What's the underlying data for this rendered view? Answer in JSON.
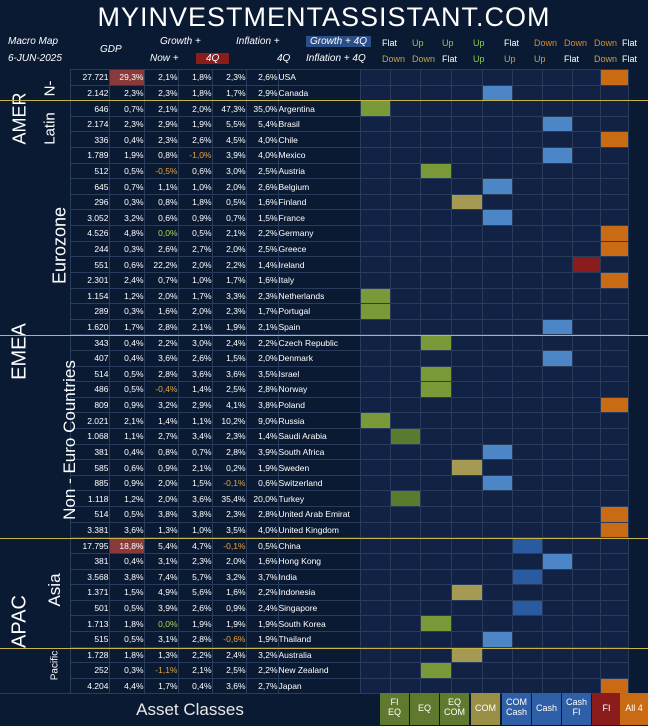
{
  "title": "MYINVESTMENTASSISTANT.COM",
  "header": {
    "map_title": "Macro Map",
    "date": "6-JUN-2025",
    "gdp": "GDP",
    "growth": "Growth +",
    "now": "Now +",
    "q4": "4Q",
    "inflation": "Inflation +",
    "inf_q4": "4Q",
    "gi": "Growth + 4Q",
    "ii": "Inflation + 4Q",
    "cols": [
      {
        "top": "Flat",
        "bot": "Down",
        "tc": "#ffffff",
        "bc": "#c8a24a"
      },
      {
        "top": "Up",
        "bot": "Down",
        "tc": "#8ccf4a",
        "bc": "#c8a24a"
      },
      {
        "top": "Up",
        "bot": "Flat",
        "tc": "#8ccf4a",
        "bc": "#ffffff"
      },
      {
        "top": "Up",
        "bot": "Up",
        "tc": "#8ccf4a",
        "bc": "#8ccf4a"
      },
      {
        "top": "Flat",
        "bot": "Up",
        "tc": "#ffffff",
        "bc": "#c8a24a"
      },
      {
        "top": "Down",
        "bot": "Up",
        "tc": "#d98b2a",
        "bc": "#c8a24a"
      },
      {
        "top": "Down",
        "bot": "Flat",
        "tc": "#d98b2a",
        "bc": "#ffffff"
      },
      {
        "top": "Down",
        "bot": "Down",
        "tc": "#d98b2a",
        "bc": "#c8a24a"
      },
      {
        "top": "Flat",
        "bot": "Flat",
        "tc": "#ffffff",
        "bc": "#ffffff"
      }
    ]
  },
  "regions": {
    "amer": "AMER",
    "n": "N-",
    "latin": "Latin",
    "emea": "EMEA",
    "eurozone": "Eurozone",
    "noneuro": "Non - Euro Countries",
    "apac": "APAC",
    "asia": "Asia",
    "pacific": "Pacific"
  },
  "rows": [
    {
      "gdp": "27.721",
      "pct": "29,3%",
      "gn": "2,1%",
      "g4": "1,8%",
      "in": "2,3%",
      "i4": "2,6%",
      "c": "USA",
      "sig": 8,
      "hl": 1
    },
    {
      "gdp": "2.142",
      "pct": "2,3%",
      "gn": "2,3%",
      "g4": "1,8%",
      "in": "1,7%",
      "i4": "2,9%",
      "c": "Canada",
      "sig": 4
    },
    {
      "gdp": "646",
      "pct": "0,7%",
      "gn": "2,1%",
      "g4": "2,0%",
      "in": "47,3%",
      "i4": "35,0%",
      "c": "Argentina",
      "sig": 0
    },
    {
      "gdp": "2.174",
      "pct": "2,3%",
      "gn": "2,9%",
      "g4": "1,9%",
      "in": "5,5%",
      "i4": "5,4%",
      "c": "Brasil",
      "sig": 6
    },
    {
      "gdp": "336",
      "pct": "0,4%",
      "gn": "2,3%",
      "g4": "2,6%",
      "in": "4,5%",
      "i4": "4,0%",
      "c": "Chile",
      "sig": 8
    },
    {
      "gdp": "1.789",
      "pct": "1,9%",
      "gn": "0,8%",
      "g4": "-1,0%",
      "in": "3,9%",
      "i4": "4,0%",
      "c": "Mexico",
      "sig": 6
    },
    {
      "gdp": "512",
      "pct": "0,5%",
      "gn": "-0,5%",
      "g4": "0,6%",
      "in": "3,0%",
      "i4": "2,5%",
      "c": "Austria",
      "sig": 2
    },
    {
      "gdp": "645",
      "pct": "0,7%",
      "gn": "1,1%",
      "g4": "1,0%",
      "in": "2,0%",
      "i4": "2,6%",
      "c": "Belgium",
      "sig": 4
    },
    {
      "gdp": "296",
      "pct": "0,3%",
      "gn": "0,8%",
      "g4": "1,8%",
      "in": "0,5%",
      "i4": "1,6%",
      "c": "Finland",
      "sig": 3
    },
    {
      "gdp": "3.052",
      "pct": "3,2%",
      "gn": "0,6%",
      "g4": "0,9%",
      "in": "0,7%",
      "i4": "1,5%",
      "c": "France",
      "sig": 4
    },
    {
      "gdp": "4.526",
      "pct": "4,8%",
      "gn": "0,0%",
      "g4": "0,5%",
      "in": "2,1%",
      "i4": "2,2%",
      "c": "Germany",
      "sig": 8
    },
    {
      "gdp": "244",
      "pct": "0,3%",
      "gn": "2,6%",
      "g4": "2,7%",
      "in": "2,0%",
      "i4": "2,5%",
      "c": "Greece",
      "sig": 8
    },
    {
      "gdp": "551",
      "pct": "0,6%",
      "gn": "22,2%",
      "g4": "2,0%",
      "in": "2,2%",
      "i4": "1,4%",
      "c": "Ireland",
      "sig": 7
    },
    {
      "gdp": "2.301",
      "pct": "2,4%",
      "gn": "0,7%",
      "g4": "1,0%",
      "in": "1,7%",
      "i4": "1,6%",
      "c": "Italy",
      "sig": 8
    },
    {
      "gdp": "1.154",
      "pct": "1,2%",
      "gn": "2,0%",
      "g4": "1,7%",
      "in": "3,3%",
      "i4": "2,3%",
      "c": "Netherlands",
      "sig": 0
    },
    {
      "gdp": "289",
      "pct": "0,3%",
      "gn": "1,6%",
      "g4": "2,0%",
      "in": "2,3%",
      "i4": "1,7%",
      "c": "Portugal",
      "sig": 0
    },
    {
      "gdp": "1.620",
      "pct": "1,7%",
      "gn": "2,8%",
      "g4": "2,1%",
      "in": "1,9%",
      "i4": "2,1%",
      "c": "Spain",
      "sig": 6
    },
    {
      "gdp": "343",
      "pct": "0,4%",
      "gn": "2,2%",
      "g4": "3,0%",
      "in": "2,4%",
      "i4": "2,2%",
      "c": "Czech Republic",
      "sig": 2
    },
    {
      "gdp": "407",
      "pct": "0,4%",
      "gn": "3,6%",
      "g4": "2,6%",
      "in": "1,5%",
      "i4": "2,0%",
      "c": "Denmark",
      "sig": 6
    },
    {
      "gdp": "514",
      "pct": "0,5%",
      "gn": "2,8%",
      "g4": "3,6%",
      "in": "3,6%",
      "i4": "3,5%",
      "c": "Israel",
      "sig": 2
    },
    {
      "gdp": "486",
      "pct": "0,5%",
      "gn": "-0,4%",
      "g4": "1,4%",
      "in": "2,5%",
      "i4": "2,8%",
      "c": "Norway",
      "sig": 2
    },
    {
      "gdp": "809",
      "pct": "0,9%",
      "gn": "3,2%",
      "g4": "2,9%",
      "in": "4,1%",
      "i4": "3,8%",
      "c": "Poland",
      "sig": 8
    },
    {
      "gdp": "2.021",
      "pct": "2,1%",
      "gn": "1,4%",
      "g4": "1,1%",
      "in": "10,2%",
      "i4": "9,0%",
      "c": "Russia",
      "sig": 0
    },
    {
      "gdp": "1.068",
      "pct": "1,1%",
      "gn": "2,7%",
      "g4": "3,4%",
      "in": "2,3%",
      "i4": "1,4%",
      "c": "Saudi Arabia",
      "sig": 1
    },
    {
      "gdp": "381",
      "pct": "0,4%",
      "gn": "0,8%",
      "g4": "0,7%",
      "in": "2,8%",
      "i4": "3,9%",
      "c": "South Africa",
      "sig": 4
    },
    {
      "gdp": "585",
      "pct": "0,6%",
      "gn": "0,9%",
      "g4": "2,1%",
      "in": "0,2%",
      "i4": "1,9%",
      "c": "Sweden",
      "sig": 3
    },
    {
      "gdp": "885",
      "pct": "0,9%",
      "gn": "2,0%",
      "g4": "1,5%",
      "in": "-0,1%",
      "i4": "0,6%",
      "c": "Switzerland",
      "sig": 4
    },
    {
      "gdp": "1.118",
      "pct": "1,2%",
      "gn": "2,0%",
      "g4": "3,6%",
      "in": "35,4%",
      "i4": "20,0%",
      "c": "Turkey",
      "sig": 1
    },
    {
      "gdp": "514",
      "pct": "0,5%",
      "gn": "3,8%",
      "g4": "3,8%",
      "in": "2,3%",
      "i4": "2,8%",
      "c": "United Arab Emirat",
      "sig": 8
    },
    {
      "gdp": "3.381",
      "pct": "3,6%",
      "gn": "1,3%",
      "g4": "1,0%",
      "in": "3,5%",
      "i4": "4,0%",
      "c": "United Kingdom",
      "sig": 8
    },
    {
      "gdp": "17.795",
      "pct": "18,8%",
      "gn": "5,4%",
      "g4": "4,7%",
      "in": "-0,1%",
      "i4": "0,5%",
      "c": "China",
      "sig": 5,
      "hl": 1
    },
    {
      "gdp": "381",
      "pct": "0,4%",
      "gn": "3,1%",
      "g4": "2,3%",
      "in": "2,0%",
      "i4": "1,6%",
      "c": "Hong Kong",
      "sig": 6
    },
    {
      "gdp": "3.568",
      "pct": "3,8%",
      "gn": "7,4%",
      "g4": "5,7%",
      "in": "3,2%",
      "i4": "3,7%",
      "c": "India",
      "sig": 5
    },
    {
      "gdp": "1.371",
      "pct": "1,5%",
      "gn": "4,9%",
      "g4": "5,6%",
      "in": "1,6%",
      "i4": "2,2%",
      "c": "Indonesia",
      "sig": 3
    },
    {
      "gdp": "501",
      "pct": "0,5%",
      "gn": "3,9%",
      "g4": "2,6%",
      "in": "0,9%",
      "i4": "2,4%",
      "c": "Singapore",
      "sig": 5
    },
    {
      "gdp": "1.713",
      "pct": "1,8%",
      "gn": "0,0%",
      "g4": "1,9%",
      "in": "1,9%",
      "i4": "1,9%",
      "c": "South Korea",
      "sig": 2
    },
    {
      "gdp": "515",
      "pct": "0,5%",
      "gn": "3,1%",
      "g4": "2,8%",
      "in": "-0,6%",
      "i4": "1,9%",
      "c": "Thailand",
      "sig": 4
    },
    {
      "gdp": "1.728",
      "pct": "1,8%",
      "gn": "1,3%",
      "g4": "2,2%",
      "in": "2,4%",
      "i4": "3,2%",
      "c": "Australia",
      "sig": 3
    },
    {
      "gdp": "252",
      "pct": "0,3%",
      "gn": "-1,1%",
      "g4": "2,1%",
      "in": "2,5%",
      "i4": "2,2%",
      "c": "New Zealand",
      "sig": 2
    },
    {
      "gdp": "4.204",
      "pct": "4,4%",
      "gn": "1,7%",
      "g4": "0,4%",
      "in": "3,6%",
      "i4": "2,7%",
      "c": "Japan",
      "sig": 8
    }
  ],
  "colors": [
    "#7a9a3a",
    "#5a7a2e",
    "#7a9a3a",
    "#a59a52",
    "#4d86c6",
    "#2a5aa0",
    "#4d86c6",
    "#8a1c1c",
    "#c96a14"
  ],
  "footer": {
    "label": "Asset Classes",
    "classes": [
      {
        "a": "FI",
        "b": "EQ",
        "bg": "#5f7a2e"
      },
      {
        "a": "EQ",
        "b": "",
        "bg": "#5f7a2e"
      },
      {
        "a": "EQ",
        "b": "COM",
        "bg": "#5f7a2e"
      },
      {
        "a": "COM",
        "b": "",
        "bg": "#9a8f45"
      },
      {
        "a": "COM",
        "b": "Cash",
        "bg": "#2f5fa6"
      },
      {
        "a": "Cash",
        "b": "",
        "bg": "#2f5fa6"
      },
      {
        "a": "Cash",
        "b": "FI",
        "bg": "#2f5fa6"
      },
      {
        "a": "FI",
        "b": "",
        "bg": "#8a1c1c"
      },
      {
        "a": "All 4",
        "b": "",
        "bg": "#c96a14"
      }
    ]
  }
}
